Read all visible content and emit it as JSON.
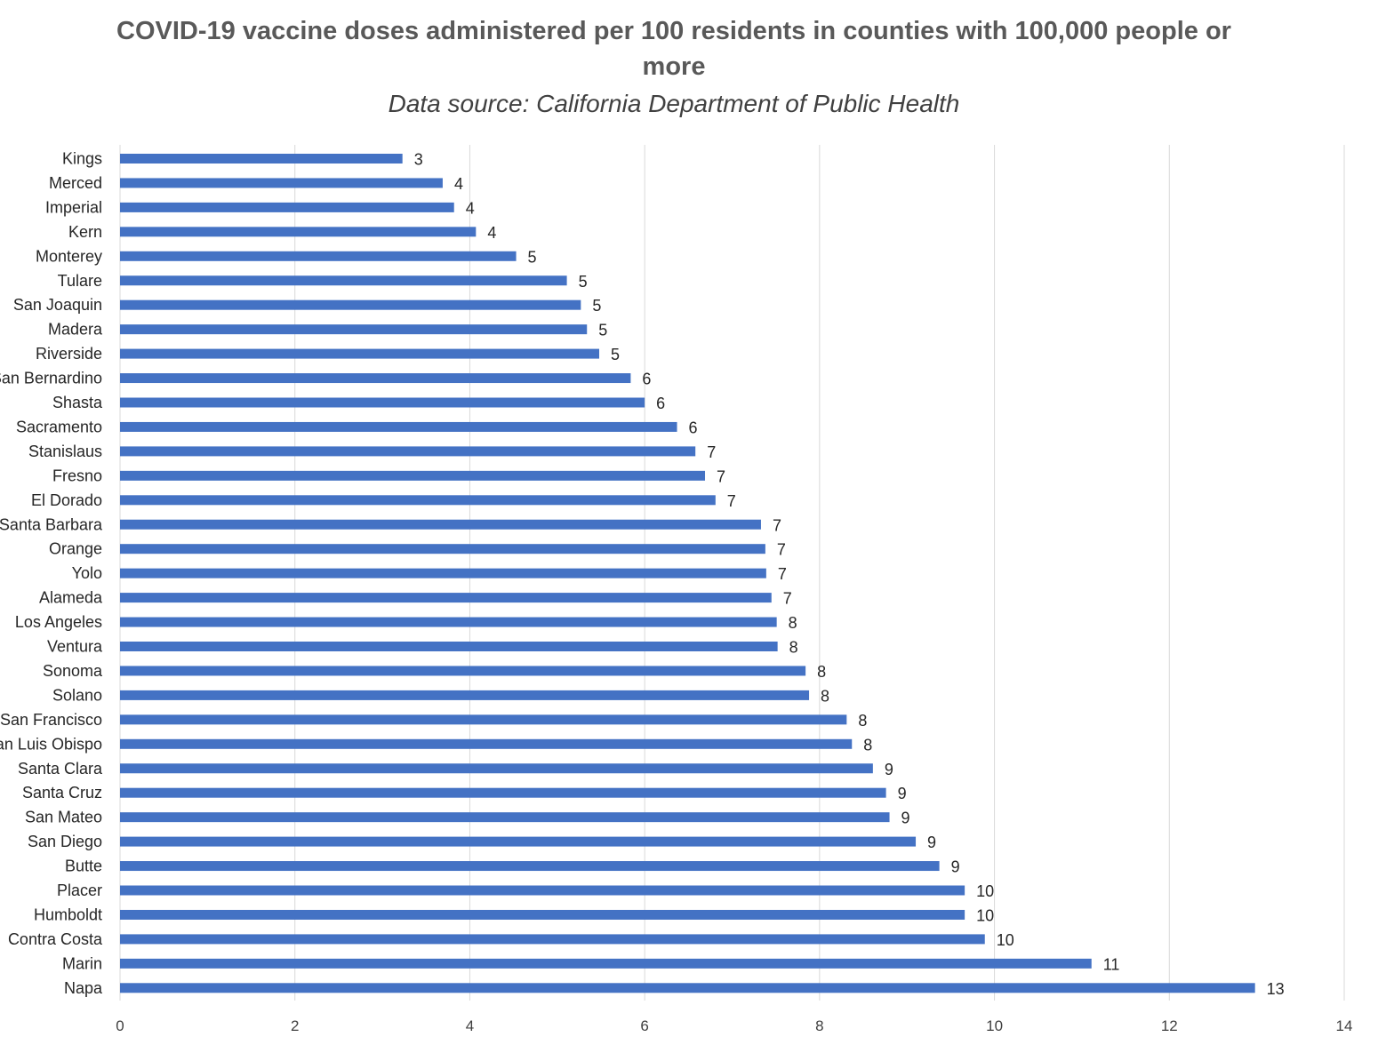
{
  "chart_data": {
    "type": "bar",
    "orientation": "horizontal",
    "title": "COVID-19 vaccine doses administered per 100 residents in counties with 100,000 people or more",
    "title_lines": [
      "COVID-19 vaccine doses administered per 100 residents in counties with 100,000 people or",
      "more"
    ],
    "subtitle": "Data source: California Department of Public Health",
    "xlim": [
      0,
      14
    ],
    "xticks": [
      0,
      2,
      4,
      6,
      8,
      10,
      12,
      14
    ],
    "grid": true,
    "bar_color": "#4472c4",
    "categories": [
      "Kings",
      "Merced",
      "Imperial",
      "Kern",
      "Monterey",
      "Tulare",
      "San Joaquin",
      "Madera",
      "Riverside",
      "San Bernardino",
      "Shasta",
      "Sacramento",
      "Stanislaus",
      "Fresno",
      "El Dorado",
      "Santa Barbara",
      "Orange",
      "Yolo",
      "Alameda",
      "Los Angeles",
      "Ventura",
      "Sonoma",
      "Solano",
      "San Francisco",
      "San Luis Obispo",
      "Santa Clara",
      "Santa Cruz",
      "San Mateo",
      "San Diego",
      "Butte",
      "Placer",
      "Humboldt",
      "Contra Costa",
      "Marin",
      "Napa"
    ],
    "values": [
      3.23,
      3.69,
      3.82,
      4.07,
      4.53,
      5.11,
      5.27,
      5.34,
      5.48,
      5.84,
      6.0,
      6.37,
      6.58,
      6.69,
      6.81,
      7.33,
      7.38,
      7.39,
      7.45,
      7.51,
      7.52,
      7.84,
      7.88,
      8.31,
      8.37,
      8.61,
      8.76,
      8.8,
      9.1,
      9.37,
      9.66,
      9.66,
      9.89,
      11.11,
      12.98
    ],
    "data_labels": [
      "3",
      "4",
      "4",
      "4",
      "5",
      "5",
      "5",
      "5",
      "5",
      "6",
      "6",
      "6",
      "7",
      "7",
      "7",
      "7",
      "7",
      "7",
      "7",
      "8",
      "8",
      "8",
      "8",
      "8",
      "8",
      "9",
      "9",
      "9",
      "9",
      "9",
      "10",
      "10",
      "10",
      "11",
      "13"
    ]
  }
}
